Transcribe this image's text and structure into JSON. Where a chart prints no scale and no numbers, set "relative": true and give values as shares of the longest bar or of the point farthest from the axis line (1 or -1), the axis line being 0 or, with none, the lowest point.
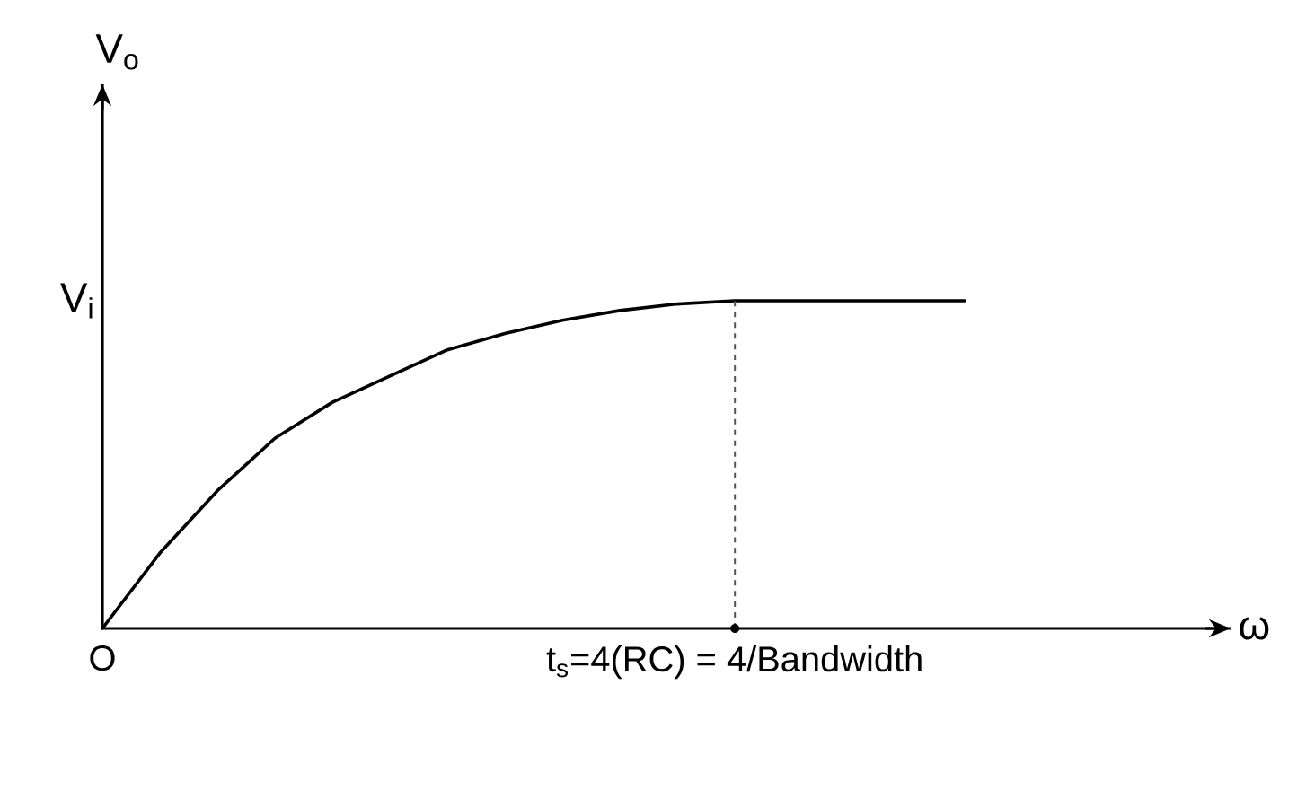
{
  "chart_data": {
    "type": "line",
    "relative": true,
    "categories": [
      "O",
      null,
      null,
      null,
      null,
      null,
      null,
      null,
      null,
      null,
      null,
      "t$_{s}$=4(RC) = 4/Bandwidth",
      null,
      null,
      null,
      null
    ],
    "values": [
      0,
      0.23,
      0.42,
      0.58,
      0.69,
      0.77,
      0.85,
      0.9,
      0.94,
      0.97,
      0.99,
      1,
      1,
      1,
      1,
      1
    ],
    "color": "#000000",
    "marker": "none",
    "line_style": "solid",
    "annotations": [
      "V$_{o}$",
      "V$_{i}$",
      "ω"
    ],
    "ref_lines": [
      {
        "axis": "x",
        "value": "t$_{s}$=4(RC) = 4/Bandwidth",
        "line_style": "dashed"
      }
    ]
  }
}
